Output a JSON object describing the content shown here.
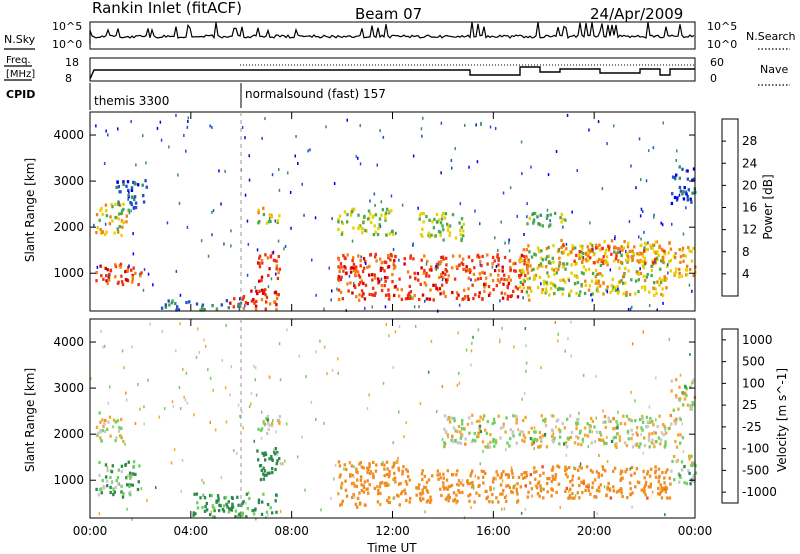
{
  "header": {
    "site": "Rankin Inlet (fitACF)",
    "beam": "Beam 07",
    "date": "24/Apr/2009"
  },
  "noise_panel": {
    "left_label": "N.Sky",
    "right_label": "N.Search",
    "ticks_left": [
      "10^5",
      "10^0"
    ],
    "ticks_right": [
      "10^5",
      "10^0"
    ]
  },
  "freq_panel": {
    "left_label_1": "Freq.",
    "left_label_2": "[MHz]",
    "right_label": "Nave",
    "ticks_left": [
      "18",
      "8"
    ],
    "ticks_right": [
      "60",
      "0"
    ]
  },
  "cpid": {
    "label": "CPID",
    "modes": [
      "themis 3300",
      "normalsound (fast) 157"
    ]
  },
  "colors": {
    "power": [
      "#0000ee",
      "#2050c8",
      "#3a8e6a",
      "#4ca84c",
      "#e8d000",
      "#f08010",
      "#f03010",
      "#d00000"
    ],
    "velocity": [
      "#e00000",
      "#f05010",
      "#f08c20",
      "#f0a830",
      "#c8c8c8",
      "#70d060",
      "#2a8a4a",
      "#2050c8"
    ]
  },
  "chart_data": [
    {
      "type": "heatmap",
      "title": "Power",
      "ylabel": "Slant Range [km]",
      "xlabel": "",
      "x_ticks": [
        "00:00",
        "04:00",
        "08:00",
        "12:00",
        "16:00",
        "20:00",
        "00:00"
      ],
      "xlim_hours": [
        0,
        24
      ],
      "ylim": [
        180,
        4500
      ],
      "y_ticks": [
        1000,
        2000,
        3000,
        4000
      ],
      "colorbar": {
        "label": "Power [dB]",
        "tick_labels": [
          "4",
          "8",
          "12",
          "16",
          "20",
          "24",
          "28"
        ]
      },
      "regions": [
        {
          "t0": 0.2,
          "t1": 2.0,
          "r0": 700,
          "r1": 1200,
          "level": 26
        },
        {
          "t0": 0.2,
          "t1": 1.5,
          "r0": 1800,
          "r1": 2500,
          "level": 18
        },
        {
          "t0": 1.0,
          "t1": 2.3,
          "r0": 2400,
          "r1": 3000,
          "level": 6
        },
        {
          "t0": 5.5,
          "t1": 7.5,
          "r0": 200,
          "r1": 650,
          "level": 27
        },
        {
          "t0": 6.6,
          "t1": 7.5,
          "r0": 800,
          "r1": 1500,
          "level": 26
        },
        {
          "t0": 6.6,
          "t1": 7.5,
          "r0": 2000,
          "r1": 2400,
          "level": 18
        },
        {
          "t0": 9.8,
          "t1": 17.5,
          "r0": 400,
          "r1": 1400,
          "level": 25
        },
        {
          "t0": 9.8,
          "t1": 12.0,
          "r0": 1800,
          "r1": 2400,
          "level": 16
        },
        {
          "t0": 13.0,
          "t1": 14.8,
          "r0": 1700,
          "r1": 2300,
          "level": 16
        },
        {
          "t0": 17.3,
          "t1": 18.9,
          "r0": 2000,
          "r1": 2300,
          "level": 14
        },
        {
          "t0": 17.0,
          "t1": 23.0,
          "r0": 500,
          "r1": 1600,
          "level": 18
        },
        {
          "t0": 18.5,
          "t1": 23.0,
          "r0": 1200,
          "r1": 1700,
          "level": 22
        },
        {
          "t0": 23.0,
          "t1": 24.0,
          "r0": 900,
          "r1": 1600,
          "level": 20
        },
        {
          "t0": 23.0,
          "t1": 24.0,
          "r0": 2500,
          "r1": 3300,
          "level": 6
        },
        {
          "t0": 2.8,
          "t1": 6.0,
          "r0": 180,
          "r1": 400,
          "level": 10
        }
      ]
    },
    {
      "type": "heatmap",
      "title": "Velocity",
      "ylabel": "Slant Range [km]",
      "xlabel": "Time UT",
      "x_ticks": [
        "00:00",
        "04:00",
        "08:00",
        "12:00",
        "16:00",
        "20:00",
        "00:00"
      ],
      "xlim_hours": [
        0,
        24
      ],
      "ylim": [
        180,
        4500
      ],
      "y_ticks": [
        1000,
        2000,
        3000,
        4000
      ],
      "colorbar": {
        "label": "Velocity [m s^-1]",
        "tick_labels": [
          "-1000",
          "-500",
          "-100",
          "-25",
          "25",
          "100",
          "500",
          "1000"
        ]
      },
      "regions": [
        {
          "t0": 0.2,
          "t1": 2.0,
          "r0": 600,
          "r1": 1400,
          "level": 100
        },
        {
          "t0": 0.2,
          "t1": 1.3,
          "r0": 1800,
          "r1": 2500,
          "level": 0
        },
        {
          "t0": 4.0,
          "t1": 7.5,
          "r0": 180,
          "r1": 700,
          "level": 150
        },
        {
          "t0": 6.5,
          "t1": 7.5,
          "r0": 1000,
          "r1": 1700,
          "level": 300
        },
        {
          "t0": 6.6,
          "t1": 7.5,
          "r0": 2000,
          "r1": 2400,
          "level": 0
        },
        {
          "t0": 9.8,
          "t1": 12.5,
          "r0": 400,
          "r1": 1400,
          "level": -200
        },
        {
          "t0": 12.5,
          "t1": 17.0,
          "r0": 500,
          "r1": 1200,
          "level": -300
        },
        {
          "t0": 14.0,
          "t1": 23.5,
          "r0": 1700,
          "r1": 2400,
          "level": 0
        },
        {
          "t0": 17.0,
          "t1": 23.0,
          "r0": 600,
          "r1": 1300,
          "level": -400
        },
        {
          "t0": 23.0,
          "t1": 24.0,
          "r0": 900,
          "r1": 1600,
          "level": 50
        },
        {
          "t0": 23.0,
          "t1": 24.0,
          "r0": 2500,
          "r1": 3200,
          "level": 0
        }
      ]
    }
  ]
}
